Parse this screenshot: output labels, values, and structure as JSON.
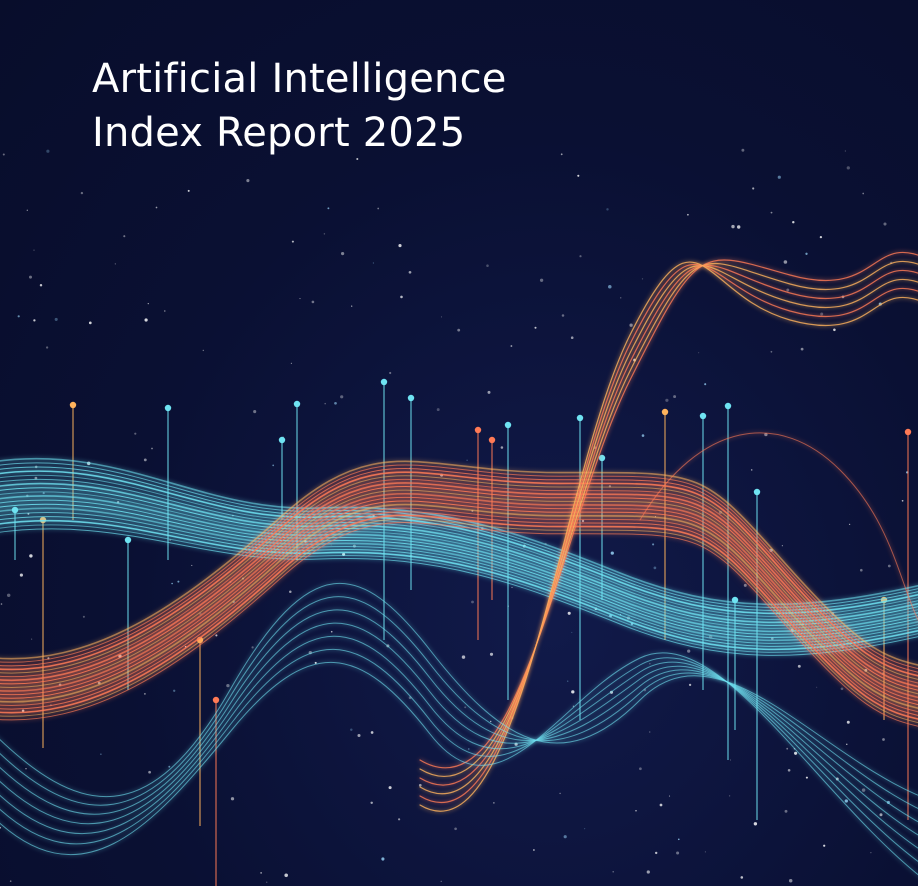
{
  "cover": {
    "title_line_1": "Artificial Intelligence",
    "title_line_2": "Index Report 2025"
  },
  "colors": {
    "background": "#0a1033",
    "cyan": "#6fe3f2",
    "orange": "#ff7a55",
    "amber": "#ffb35c",
    "title": "#ffffff"
  }
}
